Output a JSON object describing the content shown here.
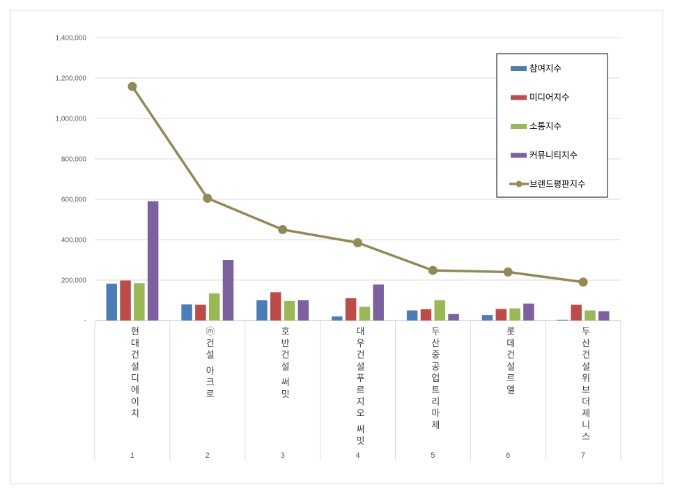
{
  "chart_data": {
    "type": "bar",
    "categories": [
      "1",
      "2",
      "3",
      "4",
      "5",
      "6",
      "7"
    ],
    "category_names": [
      "현대건설디에이치",
      "ⓜ건설 아크로",
      "호반건설 써밋",
      "대우건설푸르지오 써밋",
      "두산중공업트리마제",
      "롯데건설르엘",
      "두산건설위브더제니스"
    ],
    "series": [
      {
        "name": "참여지수",
        "type": "bar",
        "color": "#4a7ebb",
        "values": [
          182000,
          80000,
          100000,
          20000,
          50000,
          27000,
          4000
        ]
      },
      {
        "name": "미디어지수",
        "type": "bar",
        "color": "#be4b48",
        "values": [
          198000,
          78000,
          140000,
          110000,
          56000,
          57000,
          78000
        ]
      },
      {
        "name": "소통지수",
        "type": "bar",
        "color": "#98b954",
        "values": [
          185000,
          134000,
          97000,
          68000,
          100000,
          60000,
          50000
        ]
      },
      {
        "name": "커뮤니티지수",
        "type": "bar",
        "color": "#7d60a0",
        "values": [
          590000,
          300000,
          100000,
          178000,
          32000,
          84000,
          46000
        ]
      },
      {
        "name": "브랜드평판지수",
        "type": "line",
        "color": "#938953",
        "values": [
          1158000,
          605000,
          450000,
          385000,
          248000,
          240000,
          190000
        ]
      }
    ],
    "yticks": [
      "-",
      "200,000",
      "400,000",
      "600,000",
      "800,000",
      "1,000,000",
      "1,200,000",
      "1,400,000"
    ],
    "ylim": [
      0,
      1400000
    ],
    "grid": true,
    "legend_position": "right",
    "title": "",
    "xlabel": "",
    "ylabel": ""
  }
}
